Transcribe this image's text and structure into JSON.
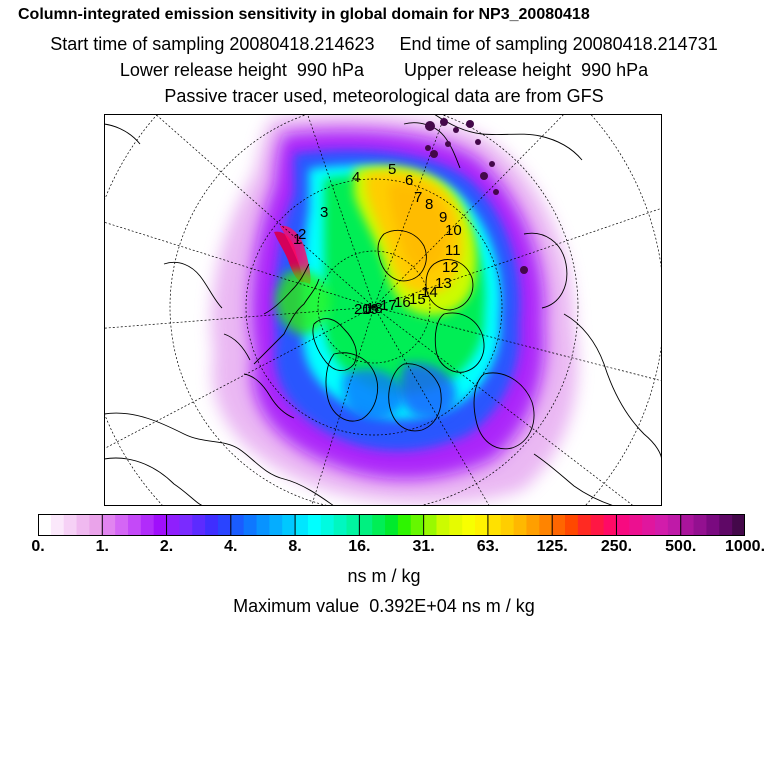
{
  "header": {
    "title": "Column-integrated emission sensitivity in global domain for NP3_20080418",
    "line2": "Start time of sampling 20080418.214623     End time of sampling 20080418.214731",
    "line3": "Lower release height  990 hPa        Upper release height  990 hPa",
    "line4": "Passive tracer used, meteorological data are from GFS"
  },
  "map": {
    "projection": "polar-stereographic-north",
    "trajectory_labels": [
      "1",
      "2",
      "3",
      "4",
      "5",
      "6",
      "7",
      "8",
      "9",
      "10",
      "11",
      "12",
      "13",
      "14",
      "15",
      "16",
      "17",
      "18",
      "19",
      "20"
    ],
    "colors": {
      "coast": "#000000",
      "grid": "#000000",
      "max_sensitivity": "#d4005a"
    }
  },
  "colorbar": {
    "colors": [
      "#ffffff",
      "#fbe8fb",
      "#f6d1f6",
      "#f0b9f0",
      "#eaa3ea",
      "#e184f0",
      "#d466f5",
      "#c449f8",
      "#b12cfa",
      "#a00ffb",
      "#8f1ffd",
      "#7a2bff",
      "#5c2bff",
      "#3f2eff",
      "#2a44ff",
      "#1a5cff",
      "#0e77ff",
      "#0893ff",
      "#05adff",
      "#00c8ff",
      "#00e6ff",
      "#00ffff",
      "#00fbe0",
      "#00f7c0",
      "#00f5a0",
      "#00f080",
      "#00ee55",
      "#00ea2c",
      "#2ef500",
      "#66f700",
      "#99f900",
      "#ccfb00",
      "#e6fb00",
      "#f8ff00",
      "#fff200",
      "#ffe100",
      "#ffce00",
      "#ffb800",
      "#ff9f00",
      "#ff8400",
      "#ff6600",
      "#ff4800",
      "#ff2a22",
      "#ff1744",
      "#ff0a66",
      "#f70a80",
      "#ec1090",
      "#e0169e",
      "#d21cab",
      "#bf1aa8",
      "#aa149c",
      "#931090",
      "#7a0a80",
      "#5f0866",
      "#44084a"
    ],
    "tick_labels": [
      "0.",
      "1.",
      "2.",
      "4.",
      "8.",
      "16.",
      "31.",
      "63.",
      "125.",
      "250.",
      "500.",
      "1000."
    ],
    "units": "ns m / kg"
  },
  "footer": {
    "max_value": "Maximum value  0.392E+04 ns m / kg"
  }
}
